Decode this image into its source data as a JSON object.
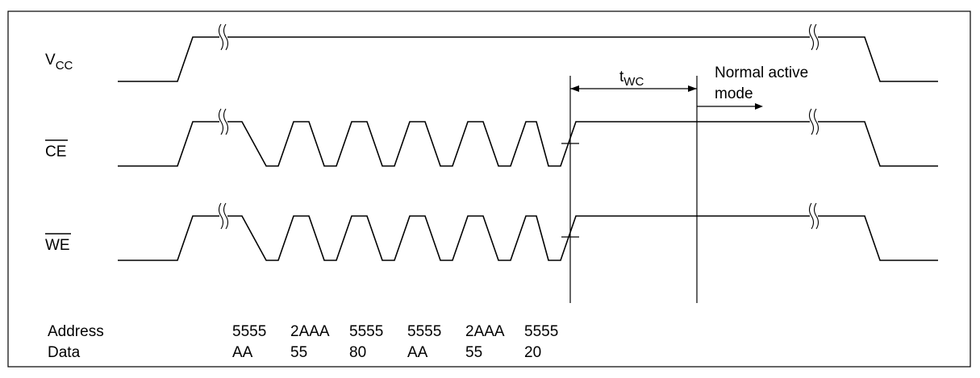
{
  "signals": {
    "vcc": {
      "main": "V",
      "sub": "CC"
    },
    "ce": "CE",
    "we": "WE"
  },
  "timing": {
    "twc": {
      "main": "t",
      "sub": "WC"
    },
    "normal_line1": "Normal active",
    "normal_line2": "mode"
  },
  "table": {
    "address_label": "Address",
    "data_label": "Data",
    "address_values": [
      "5555",
      "2AAA",
      "5555",
      "5555",
      "2AAA",
      "5555"
    ],
    "data_values": [
      "AA",
      "55",
      "80",
      "AA",
      "55",
      "20"
    ]
  }
}
